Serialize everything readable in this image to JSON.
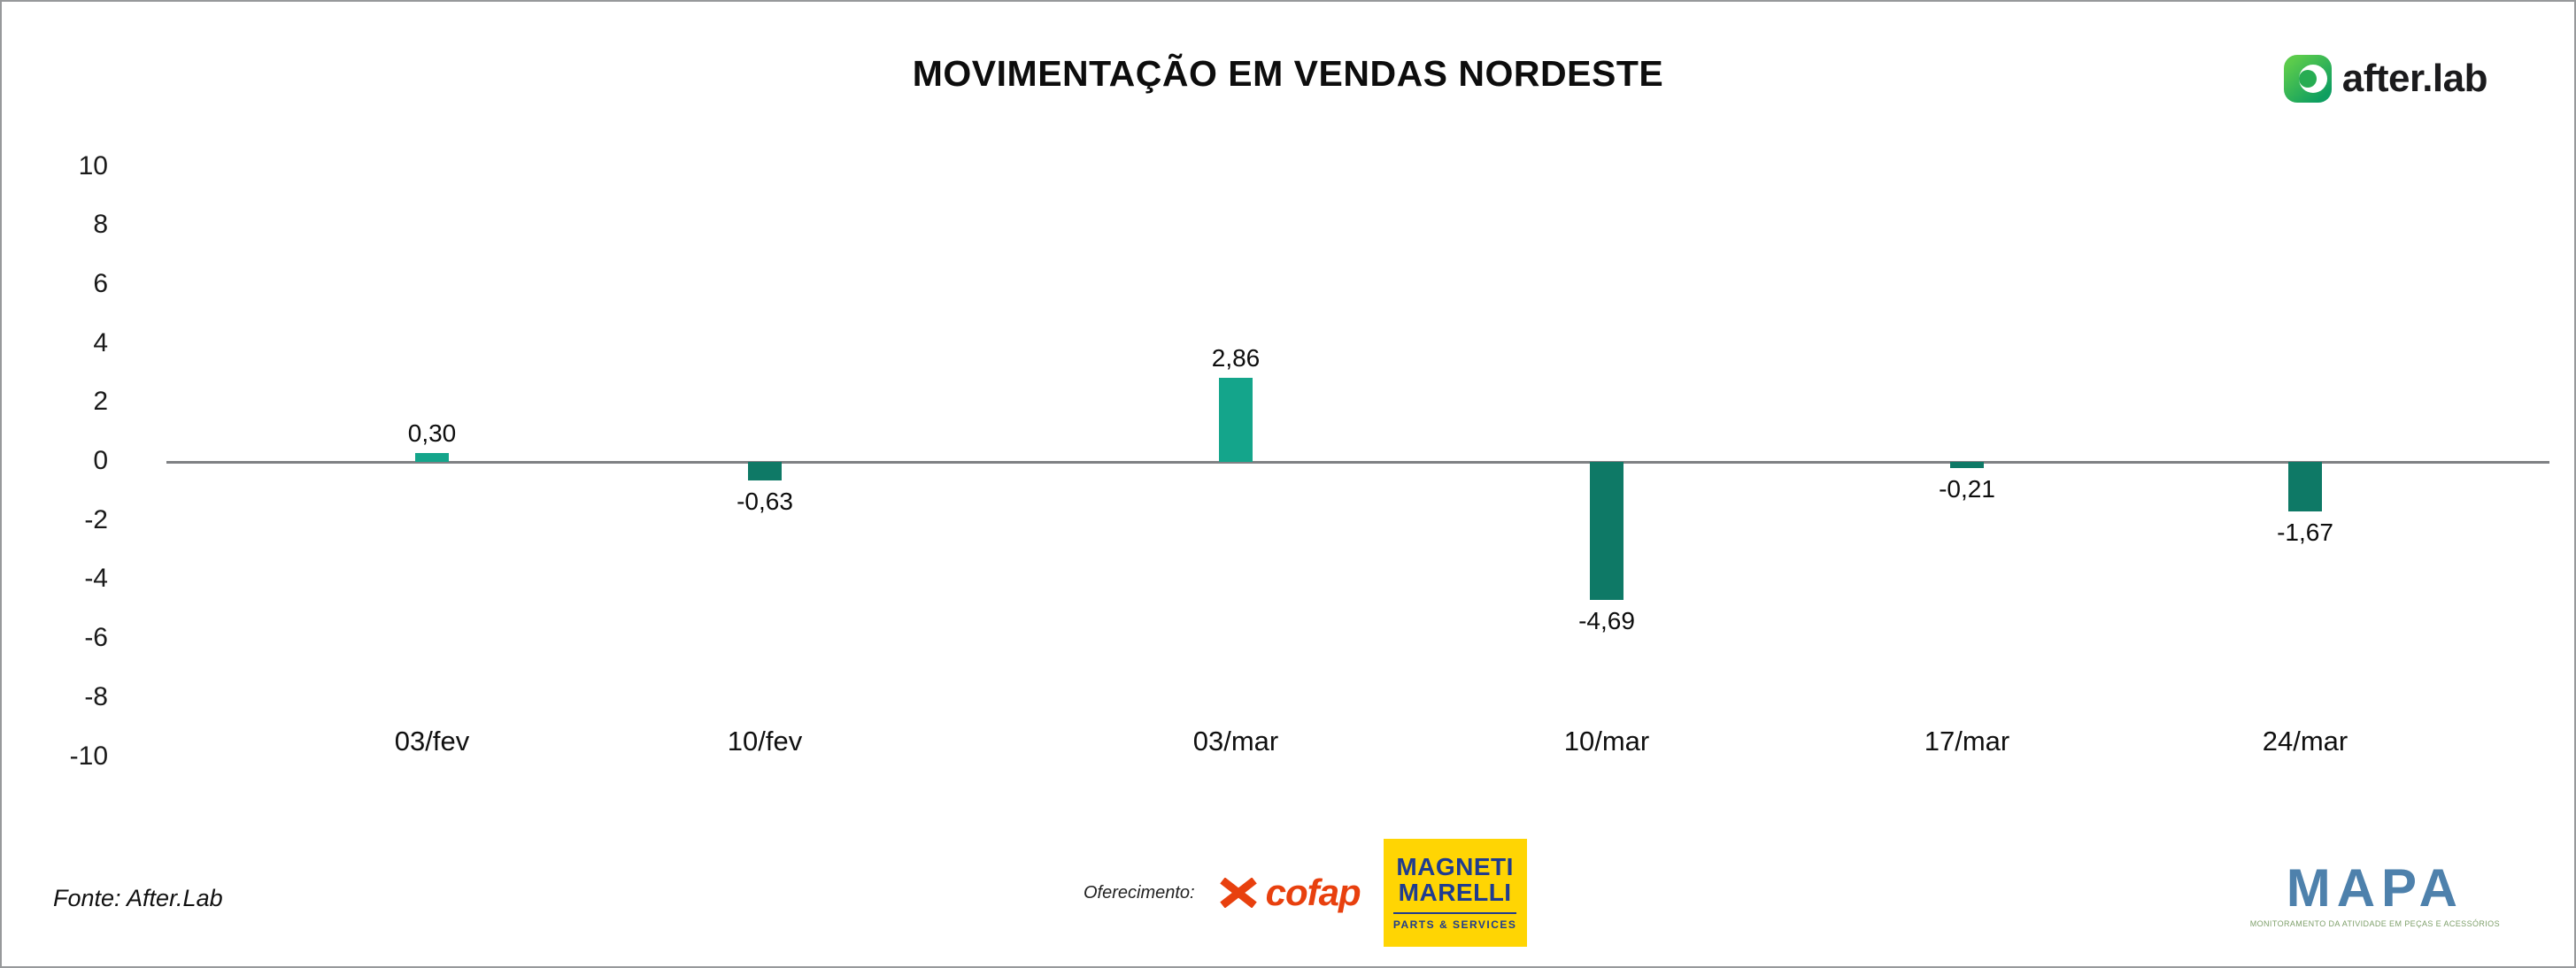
{
  "header": {
    "brand": "after.lab"
  },
  "chart_data": {
    "type": "bar",
    "title": "MOVIMENTAÇÃO EM VENDAS NORDESTE",
    "categories": [
      "03/fev",
      "10/fev",
      "03/mar",
      "10/mar",
      "17/mar",
      "24/mar"
    ],
    "values": [
      0.3,
      -0.63,
      2.86,
      -4.69,
      -0.21,
      -1.67
    ],
    "value_labels": [
      "0,30",
      "-0,63",
      "2,86",
      "-4,69",
      "-0,21",
      "-1,67"
    ],
    "xlabel": "",
    "ylabel": "",
    "ylim": [
      -10,
      10
    ],
    "yticks": [
      10,
      8,
      6,
      4,
      2,
      0,
      -2,
      -4,
      -6,
      -8,
      -10
    ],
    "grid": false,
    "legend": false,
    "positive_color": "#14a58b",
    "negative_color": "#0e7966"
  },
  "footer": {
    "source": "Fonte: After.Lab",
    "sponsorship_label": "Oferecimento:",
    "sponsors": {
      "cofap": "cofap",
      "magneti_marelli": {
        "line1": "MAGNETI",
        "line2": "MARELLI",
        "line3": "PARTS & SERVICES"
      }
    },
    "mapa": {
      "brand": "MAPA",
      "caption": "MONITORAMENTO DA ATIVIDADE EM PEÇAS E ACESSÓRIOS"
    }
  }
}
